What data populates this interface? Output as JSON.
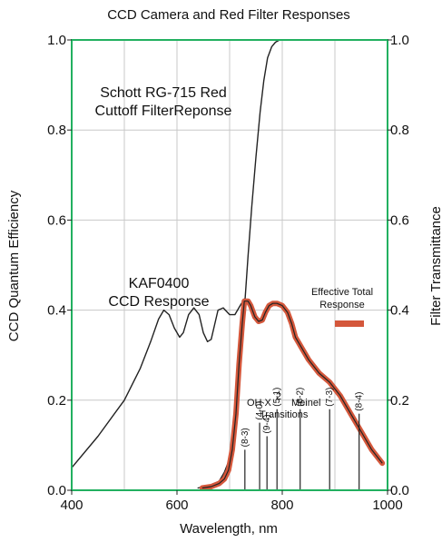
{
  "chart_data": {
    "type": "line",
    "title": "CCD Camera and Red Filter Responses",
    "xlabel": "Wavelength, nm",
    "ylabel_left": "CCD Quantum Efficiency",
    "ylabel_right": "Filter Transmittance",
    "xlim": [
      400,
      1000
    ],
    "ylim_left": [
      0,
      1.0
    ],
    "ylim_right": [
      0,
      1.0
    ],
    "x_ticks": [
      "400",
      "600",
      "800",
      "1000"
    ],
    "y_ticks_left": [
      "0.0",
      "0.2",
      "0.4",
      "0.6",
      "0.8",
      "1.0"
    ],
    "y_ticks_right": [
      "0.0",
      "0.2",
      "0.4",
      "0.6",
      "0.8",
      "1.0"
    ],
    "x_tick_values": [
      400,
      600,
      800,
      1000
    ],
    "x_grid_values": [
      500,
      600,
      700,
      800,
      900
    ],
    "y_tick_values": [
      0,
      0.2,
      0.4,
      0.6,
      0.8,
      1.0
    ],
    "grid": true,
    "frame_color": "#22b060",
    "grid_color": "#c8c8c8",
    "series": [
      {
        "key": "kaf0400",
        "color": "#222222",
        "x": [
          400,
          450,
          500,
          530,
          550,
          565,
          575,
          585,
          595,
          605,
          612,
          622,
          632,
          642,
          650,
          658,
          665,
          670,
          678,
          688,
          700,
          710,
          720,
          728,
          735,
          740,
          748,
          755,
          762,
          768,
          775,
          782,
          790,
          800,
          810,
          818,
          825,
          835,
          850,
          870,
          890,
          910,
          930,
          950,
          970,
          990
        ],
        "y": [
          0.05,
          0.12,
          0.2,
          0.27,
          0.33,
          0.38,
          0.4,
          0.39,
          0.36,
          0.34,
          0.35,
          0.39,
          0.405,
          0.39,
          0.35,
          0.33,
          0.335,
          0.36,
          0.4,
          0.405,
          0.39,
          0.39,
          0.41,
          0.425,
          0.42,
          0.41,
          0.385,
          0.375,
          0.378,
          0.395,
          0.41,
          0.415,
          0.415,
          0.41,
          0.395,
          0.37,
          0.34,
          0.32,
          0.29,
          0.26,
          0.24,
          0.21,
          0.17,
          0.13,
          0.09,
          0.06
        ]
      },
      {
        "key": "schott_rg715",
        "color": "#222222",
        "x": [
          640,
          660,
          680,
          690,
          700,
          710,
          720,
          728,
          735,
          742,
          750,
          758,
          765,
          772,
          780,
          787,
          795,
          805,
          815
        ],
        "y": [
          0.005,
          0.01,
          0.02,
          0.04,
          0.07,
          0.14,
          0.27,
          0.4,
          0.52,
          0.63,
          0.74,
          0.84,
          0.91,
          0.96,
          0.985,
          0.995,
          1.0,
          1.0,
          1.0
        ]
      },
      {
        "key": "effective_total",
        "color": "#d4573b",
        "x": [
          648,
          665,
          680,
          690,
          698,
          705,
          712,
          718,
          724,
          728,
          735,
          740,
          748,
          755,
          762,
          768,
          775,
          782,
          790,
          800,
          810,
          818,
          825,
          835,
          850,
          870,
          890,
          910,
          930,
          950,
          970,
          990
        ],
        "y": [
          0.005,
          0.008,
          0.015,
          0.025,
          0.045,
          0.09,
          0.17,
          0.28,
          0.37,
          0.42,
          0.42,
          0.41,
          0.385,
          0.375,
          0.378,
          0.395,
          0.41,
          0.415,
          0.415,
          0.41,
          0.395,
          0.37,
          0.34,
          0.32,
          0.29,
          0.26,
          0.24,
          0.21,
          0.17,
          0.13,
          0.09,
          0.06
        ]
      }
    ],
    "annotations": {
      "schott_label": [
        "Schott RG-715 Red",
        "Cuttoff FilterReponse"
      ],
      "kaf_label": [
        "KAF0400",
        "CCD Response"
      ],
      "effective_label": [
        "Effective Total",
        "Response"
      ],
      "oh_line1": "OH X",
      "oh_superscript": "2",
      "oh_meinel": "Meinel",
      "oh_line2": "Transitions"
    },
    "transitions": [
      {
        "label": "(8-3)",
        "x": 729,
        "y_top": 0.09
      },
      {
        "label": "(4-0)",
        "x": 757,
        "y_top": 0.15
      },
      {
        "label": "(9-4)",
        "x": 771,
        "y_top": 0.12
      },
      {
        "label": "(5-1)",
        "x": 790,
        "y_top": 0.18
      },
      {
        "label": "(6-2)",
        "x": 834,
        "y_top": 0.18
      },
      {
        "label": "(7-3)",
        "x": 890,
        "y_top": 0.18
      },
      {
        "label": "(8-4)",
        "x": 946,
        "y_top": 0.17
      }
    ]
  }
}
